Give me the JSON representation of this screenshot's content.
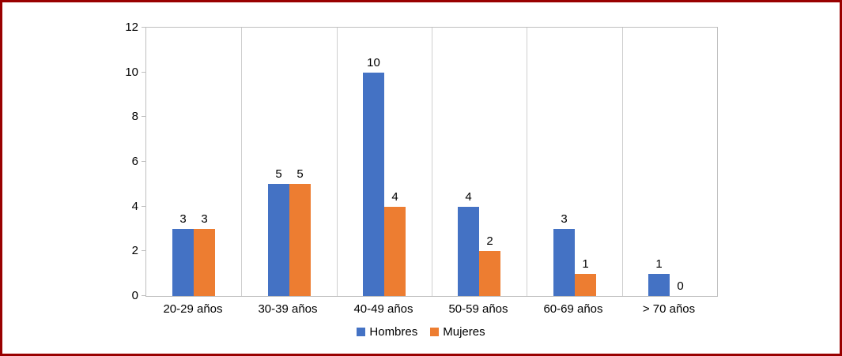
{
  "frame": {
    "border_color": "#990000",
    "background": "#ffffff"
  },
  "chart_data": {
    "type": "bar",
    "title": "",
    "xlabel": "",
    "ylabel": "",
    "categories": [
      "20-29 años",
      "30-39 años",
      "40-49 años",
      "50-59 años",
      "60-69 años",
      "> 70 años"
    ],
    "series": [
      {
        "name": "Hombres",
        "color": "#4472C4",
        "values": [
          3,
          5,
          10,
          4,
          3,
          1
        ]
      },
      {
        "name": "Mujeres",
        "color": "#ED7D31",
        "values": [
          3,
          5,
          4,
          2,
          1,
          0
        ]
      }
    ],
    "data_labels": true,
    "ylim": [
      0,
      12
    ],
    "ytick_step": 2,
    "ytick_labels": [
      "0",
      "2",
      "4",
      "6",
      "8",
      "10",
      "12"
    ],
    "grid": "vertical",
    "legend_position": "bottom",
    "gridline_color": "#cfcfcf",
    "axis_color": "#bfbfbf"
  }
}
